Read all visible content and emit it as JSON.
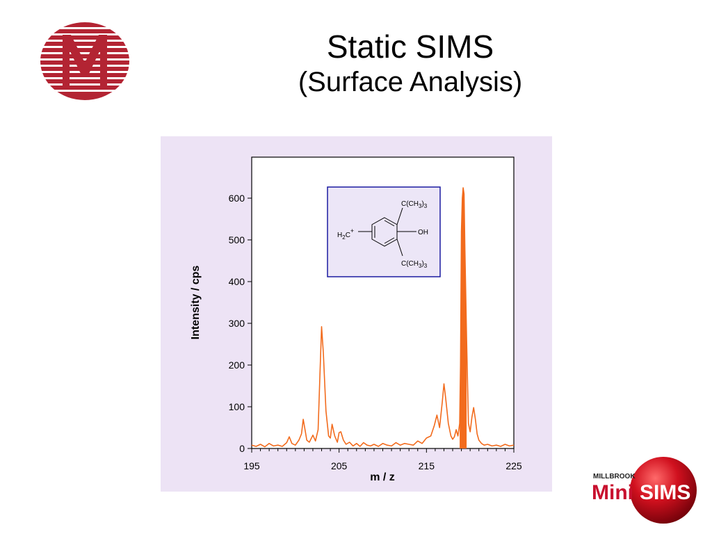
{
  "slide": {
    "title": "Static  SIMS",
    "subtitle": "(Surface Analysis)"
  },
  "colors": {
    "logo_red": "#b32433",
    "chart_background": "#ede3f5",
    "spectrum": "#f26b1d",
    "inset_border": "#1a1aa0",
    "inset_fill": "#ece6f7"
  },
  "inset": {
    "ch2_label": "H",
    "ch2_sub": "2",
    "ch2_c": "C",
    "ch2_charge": "+",
    "oh_label": "OH",
    "tbutyl_top": "C(CH",
    "tbutyl_bottom": "C(CH",
    "tbutyl_sub_a": "3",
    "tbutyl_paren": ")",
    "tbutyl_sub_b": "3"
  },
  "brand": {
    "millbrook": "MILLBROOK",
    "mini": "Mini",
    "sims": "SIMS"
  },
  "chart_data": {
    "type": "line",
    "title": "",
    "xlabel": "m / z",
    "ylabel": "Intensity / cps",
    "xlim": [
      195,
      225
    ],
    "ylim": [
      0,
      700
    ],
    "x_ticks": [
      195,
      205,
      215,
      225
    ],
    "y_ticks": [
      0,
      100,
      200,
      300,
      400,
      500,
      600
    ],
    "grid": false,
    "legend": "none",
    "series": [
      {
        "x": [
          195.0,
          195.5,
          196.0,
          196.5,
          197.0,
          197.5,
          198.0,
          198.5,
          199.0,
          199.3,
          199.6,
          200.0,
          200.4,
          200.7,
          200.9,
          201.1,
          201.3,
          201.6,
          202.0,
          202.3,
          202.6,
          202.8,
          203.0,
          203.2,
          203.5,
          203.8,
          204.0,
          204.2,
          204.5,
          204.8,
          205.0,
          205.2,
          205.5,
          205.8,
          206.2,
          206.6,
          207.0,
          207.4,
          207.8,
          208.2,
          208.6,
          209.0,
          209.5,
          210.0,
          210.5,
          211.0,
          211.5,
          212.0,
          212.5,
          213.0,
          213.5,
          214.0,
          214.5,
          215.0,
          215.5,
          215.9,
          216.2,
          216.5,
          216.8,
          217.0,
          217.2,
          217.5,
          217.8,
          218.0,
          218.2,
          218.4,
          218.6,
          218.8,
          218.9,
          219.0,
          219.1,
          219.2,
          219.3,
          219.4,
          219.6,
          219.8,
          220.0,
          220.2,
          220.4,
          220.6,
          220.8,
          221.0,
          221.3,
          221.6,
          222.0,
          222.5,
          223.0,
          223.5,
          224.0,
          224.5,
          225.0
        ],
        "y": [
          8,
          5,
          10,
          4,
          12,
          6,
          8,
          5,
          14,
          28,
          12,
          8,
          20,
          35,
          70,
          45,
          20,
          15,
          32,
          18,
          45,
          170,
          292,
          230,
          90,
          30,
          25,
          58,
          30,
          15,
          38,
          40,
          20,
          10,
          15,
          6,
          12,
          5,
          14,
          8,
          6,
          10,
          5,
          12,
          8,
          6,
          14,
          8,
          12,
          10,
          8,
          18,
          12,
          25,
          30,
          55,
          80,
          50,
          110,
          155,
          120,
          60,
          30,
          22,
          28,
          45,
          30,
          60,
          200,
          520,
          600,
          625,
          610,
          480,
          260,
          60,
          40,
          75,
          98,
          70,
          35,
          20,
          12,
          8,
          10,
          6,
          8,
          5,
          10,
          6,
          8
        ]
      }
    ]
  }
}
